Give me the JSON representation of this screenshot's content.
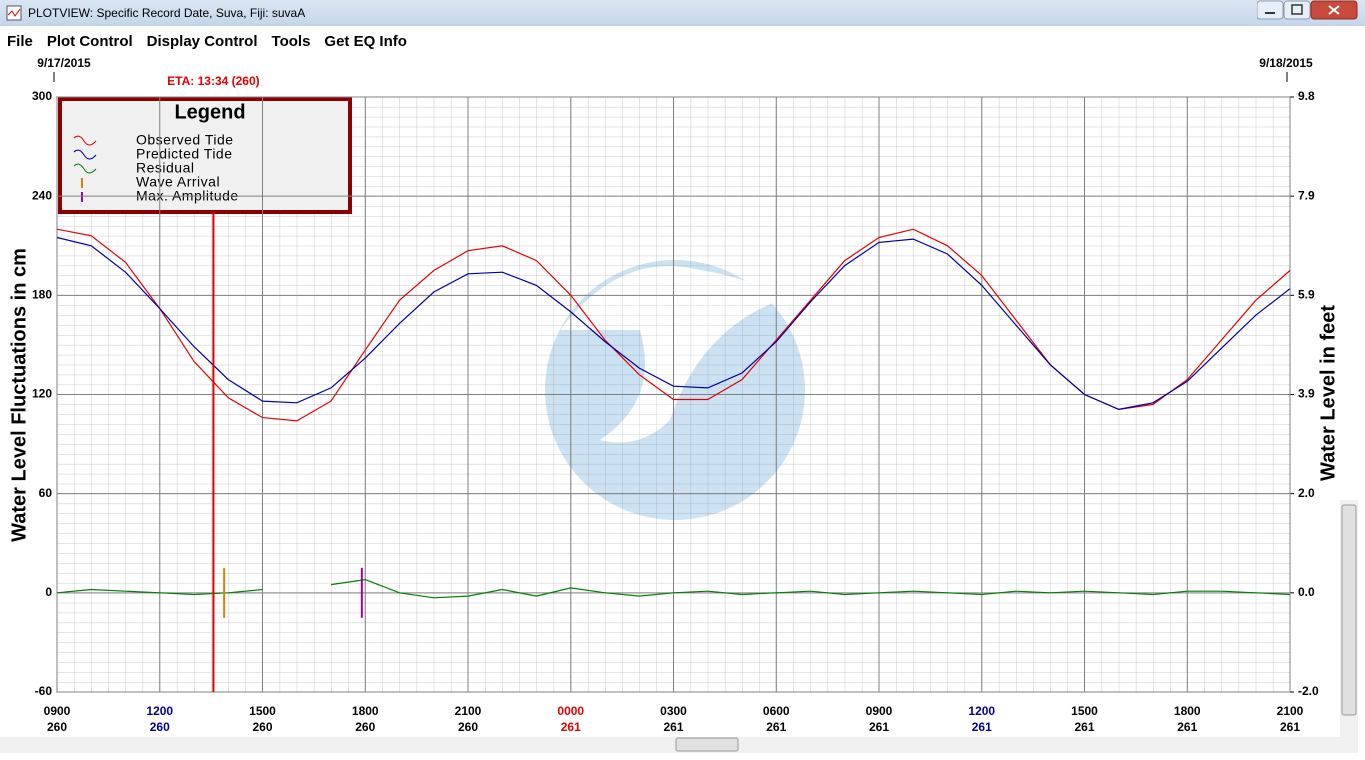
{
  "window": {
    "title": "PLOTVIEW: Specific Record Date, Suva, Fiji: suvaA"
  },
  "menu": [
    "File",
    "Plot Control",
    "Display Control",
    "Tools",
    "Get EQ Info"
  ],
  "chart_data": {
    "type": "line",
    "ylabel": "Water Level Fluctuations in cm",
    "y2label": "Water Level in feet",
    "legend_title": "Legend",
    "dates": [
      {
        "x": 9,
        "label": "9/17/2015"
      },
      {
        "x": 45,
        "label": "9/18/2015"
      }
    ],
    "eta": {
      "x": 13.567,
      "label": "ETA: 13:34 (260)",
      "color": "#e00000"
    },
    "x": [
      9,
      10,
      11,
      12,
      13,
      14,
      15,
      16,
      17,
      18,
      19,
      20,
      21,
      22,
      23,
      24,
      25,
      26,
      27,
      28,
      29,
      30,
      31,
      32,
      33,
      34,
      35,
      36,
      37,
      38,
      39,
      40,
      41,
      42,
      43,
      44,
      45
    ],
    "series": [
      {
        "name": "Observed Tide",
        "color": "#e00000",
        "values": [
          220,
          216,
          200,
          172,
          140,
          118,
          106,
          104,
          116,
          147,
          177,
          195,
          207,
          210,
          201,
          180,
          153,
          132,
          117,
          117,
          129,
          153,
          177,
          201,
          215,
          220,
          210,
          192,
          165,
          138,
          120,
          111,
          114,
          129,
          153,
          177,
          195
        ]
      },
      {
        "name": "Predicted Tide",
        "color": "#0000a0",
        "values": [
          215,
          210,
          194,
          172,
          149,
          129,
          116,
          115,
          124,
          142,
          163,
          182,
          193,
          194,
          186,
          170,
          152,
          136,
          125,
          124,
          133,
          152,
          176,
          198,
          212,
          214,
          205,
          186,
          162,
          138,
          120,
          111,
          115,
          128,
          148,
          168,
          184
        ]
      },
      {
        "name": "Residual",
        "color": "#008000",
        "values": [
          0,
          2,
          1,
          0,
          -1,
          0,
          2,
          null,
          5,
          8,
          0,
          -3,
          -2,
          2,
          -2,
          3,
          0,
          -2,
          0,
          1,
          -1,
          0,
          1,
          -1,
          0,
          1,
          0,
          -1,
          1,
          0,
          1,
          0,
          -1,
          1,
          1,
          0,
          -1
        ]
      }
    ],
    "markers": [
      {
        "name": "Wave Arrival",
        "x": 13.88,
        "color": "#e08000"
      },
      {
        "name": "Max. Amplitude",
        "x": 17.9,
        "color": "#a000a0"
      }
    ],
    "xlim": [
      9,
      45
    ],
    "xticks": [
      {
        "value": 9,
        "label": "0900",
        "day": "260",
        "color": "#000000"
      },
      {
        "value": 12,
        "label": "1200",
        "day": "260",
        "color": "#00008b"
      },
      {
        "value": 15,
        "label": "1500",
        "day": "260",
        "color": "#000000"
      },
      {
        "value": 18,
        "label": "1800",
        "day": "260",
        "color": "#000000"
      },
      {
        "value": 21,
        "label": "2100",
        "day": "260",
        "color": "#000000"
      },
      {
        "value": 24,
        "label": "0000",
        "day": "261",
        "color": "#e00000"
      },
      {
        "value": 27,
        "label": "0300",
        "day": "261",
        "color": "#000000"
      },
      {
        "value": 30,
        "label": "0600",
        "day": "261",
        "color": "#000000"
      },
      {
        "value": 33,
        "label": "0900",
        "day": "261",
        "color": "#000000"
      },
      {
        "value": 36,
        "label": "1200",
        "day": "261",
        "color": "#00008b"
      },
      {
        "value": 39,
        "label": "1500",
        "day": "261",
        "color": "#000000"
      },
      {
        "value": 42,
        "label": "1800",
        "day": "261",
        "color": "#000000"
      },
      {
        "value": 45,
        "label": "2100",
        "day": "261",
        "color": "#000000"
      }
    ],
    "ylim": [
      -60,
      300
    ],
    "yticks": [
      300,
      240,
      180,
      120,
      60,
      0,
      -60
    ],
    "y2lim": [
      -1.969,
      9.843
    ],
    "y2ticks": [
      {
        "value": 9.843,
        "label": "9.8"
      },
      {
        "value": 7.874,
        "label": "7.9"
      },
      {
        "value": 5.906,
        "label": "5.9"
      },
      {
        "value": 3.937,
        "label": "3.9"
      },
      {
        "value": 1.969,
        "label": "2.0"
      },
      {
        "value": 0,
        "label": "0.0"
      },
      {
        "value": -1.969,
        "label": "-2.0"
      }
    ],
    "grid": true
  }
}
